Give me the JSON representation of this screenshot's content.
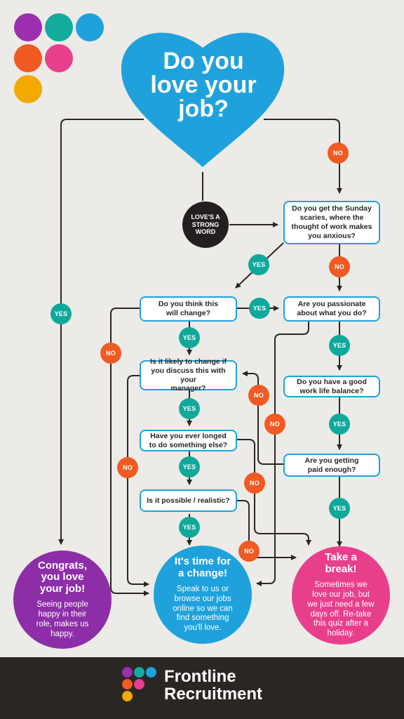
{
  "colors": {
    "background": "#ecebe7",
    "blue": "#1fa2dc",
    "yes": "#0fa99b",
    "no": "#f15a22",
    "purple": "#8d2ea8",
    "pink": "#e83f8c",
    "dark": "#231f20",
    "logo_purple": "#9b2fae",
    "logo_teal": "#12ab9c",
    "logo_blue": "#1fa2dc",
    "logo_orange": "#f15a22",
    "logo_pink": "#e83f8c",
    "logo_yellow": "#f2a900"
  },
  "heart": {
    "title": "Do you\nlove your\njob?"
  },
  "strong_word": {
    "label": "LOVE'S A\nSTRONG\nWORD"
  },
  "questions": {
    "sunday": "Do you get the Sunday\nscaries, where the\nthought of work makes\nyou anxious?",
    "will_change": "Do you think this\nwill change?",
    "passionate": "Are you passionate\nabout what you do?",
    "discuss": "Is it likely to change  if\nyou discuss this with your\nmanager?",
    "balance": "Do you have a good\nwork life balance?",
    "longed": "Have you ever longed\nto do something else?",
    "paid": "Are you getting\npaid enough?",
    "possible": "Is it possible / realistic?"
  },
  "badges": {
    "yes": "YES",
    "no": "NO"
  },
  "outcomes": {
    "congrats": {
      "title": "Congrats,\nyou love\nyour job!",
      "text": "Seeing people\nhappy in their\nrole, makes us\nhappy."
    },
    "change": {
      "title": "It's time for\na change!",
      "text": "Speak to us or\nbrowse our jobs\nonline so we can\nfind something\nyou'll love."
    },
    "break": {
      "title": "Take a\nbreak!",
      "text": "Sometimes we\nlove our job, but\nwe just need a few\ndays off. Re-take\nthis quiz after a\nholiday."
    }
  },
  "footer": {
    "brand": "Frontline\nRecruitment"
  }
}
